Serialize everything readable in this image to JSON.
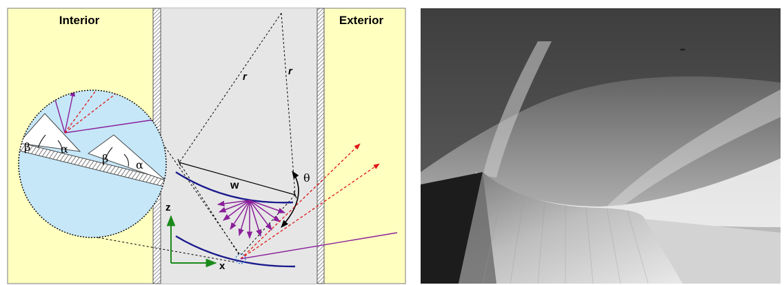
{
  "left_panel": {
    "labels": {
      "interior": "Interior",
      "exterior": "Exterior",
      "radius_1": "r",
      "radius_2": "r",
      "width": "w",
      "theta": "θ",
      "beta_1": "β",
      "alpha_1": "α",
      "beta_2": "β",
      "alpha_2": "α",
      "axis_z": "z",
      "axis_x": "x"
    },
    "colors": {
      "side_panel": "#ffffc0",
      "glazing": "#e6e6e6",
      "lens_fill": "#c6e7f8",
      "reflector_curve": "#1b1b8e",
      "ray_violet": "#8a1f9a",
      "ray_red": "#e01616",
      "axis_green": "#1a8a1a"
    }
  },
  "right_panel": {
    "description_icon": "photograph"
  }
}
